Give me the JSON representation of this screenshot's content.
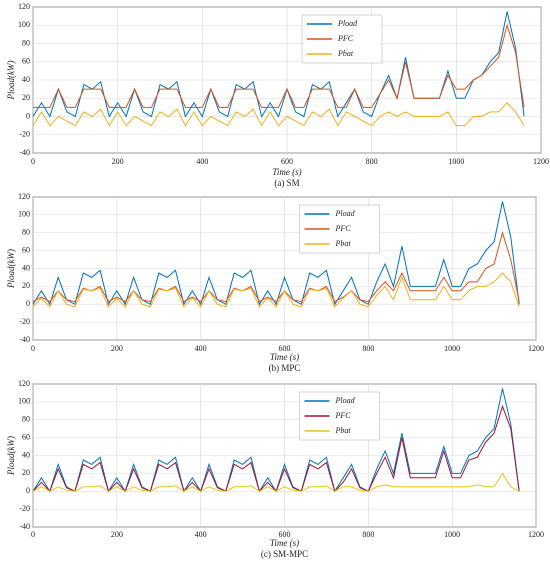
{
  "chart_data": [
    {
      "type": "line",
      "caption": "(a) SM",
      "xlabel": "Time (s)",
      "ylabel": "Pload(kW)",
      "x": [
        0,
        20,
        40,
        60,
        80,
        100,
        120,
        140,
        160,
        180,
        200,
        220,
        240,
        260,
        280,
        300,
        320,
        340,
        360,
        380,
        400,
        420,
        440,
        460,
        480,
        500,
        520,
        540,
        560,
        580,
        600,
        620,
        640,
        660,
        680,
        700,
        720,
        740,
        760,
        780,
        800,
        820,
        840,
        860,
        880,
        900,
        920,
        940,
        960,
        980,
        1000,
        1020,
        1040,
        1060,
        1080,
        1100,
        1120,
        1140,
        1160
      ],
      "series": [
        {
          "name": "Pload",
          "color": "#0072bd",
          "values": [
            0,
            15,
            0,
            30,
            5,
            0,
            35,
            30,
            38,
            0,
            15,
            0,
            30,
            5,
            0,
            35,
            30,
            38,
            0,
            15,
            0,
            30,
            5,
            0,
            35,
            30,
            38,
            0,
            15,
            0,
            30,
            5,
            0,
            35,
            30,
            38,
            0,
            15,
            30,
            5,
            0,
            25,
            45,
            20,
            65,
            20,
            20,
            20,
            20,
            50,
            20,
            20,
            40,
            45,
            60,
            70,
            115,
            75,
            0
          ]
        },
        {
          "name": "PFC",
          "color": "#d95319",
          "values": [
            10,
            10,
            10,
            30,
            10,
            10,
            30,
            30,
            30,
            10,
            10,
            10,
            30,
            10,
            10,
            30,
            30,
            30,
            10,
            10,
            10,
            30,
            10,
            10,
            30,
            30,
            30,
            10,
            10,
            10,
            30,
            10,
            10,
            30,
            30,
            30,
            10,
            10,
            30,
            10,
            10,
            25,
            40,
            20,
            60,
            20,
            20,
            20,
            20,
            45,
            30,
            30,
            40,
            45,
            55,
            65,
            100,
            70,
            10
          ]
        },
        {
          "name": "Pbat",
          "color": "#edb120",
          "values": [
            -10,
            5,
            -10,
            0,
            -5,
            -10,
            5,
            0,
            8,
            -10,
            5,
            -10,
            0,
            -5,
            -10,
            5,
            0,
            8,
            -10,
            5,
            -10,
            0,
            -5,
            -10,
            5,
            0,
            8,
            -10,
            5,
            -10,
            0,
            -5,
            -10,
            5,
            0,
            8,
            -10,
            5,
            0,
            -5,
            -10,
            0,
            5,
            0,
            5,
            0,
            0,
            0,
            0,
            5,
            -10,
            -10,
            0,
            0,
            5,
            5,
            15,
            5,
            -10
          ]
        }
      ],
      "xlim": [
        0,
        1200
      ],
      "xticks": [
        0,
        200,
        400,
        600,
        800,
        1000,
        1200
      ],
      "ylim": [
        -40,
        120
      ],
      "yticks": [
        -40,
        -20,
        0,
        20,
        40,
        60,
        80,
        100,
        120
      ],
      "grid": true,
      "legend": "upper center"
    },
    {
      "type": "line",
      "caption": "(b) MPC",
      "xlabel": "Time (s)",
      "ylabel": "Pload(kW)",
      "x": [
        0,
        20,
        40,
        60,
        80,
        100,
        120,
        140,
        160,
        180,
        200,
        220,
        240,
        260,
        280,
        300,
        320,
        340,
        360,
        380,
        400,
        420,
        440,
        460,
        480,
        500,
        520,
        540,
        560,
        580,
        600,
        620,
        640,
        660,
        680,
        700,
        720,
        740,
        760,
        780,
        800,
        820,
        840,
        860,
        880,
        900,
        920,
        940,
        960,
        980,
        1000,
        1020,
        1040,
        1060,
        1080,
        1100,
        1120,
        1140,
        1160
      ],
      "series": [
        {
          "name": "Pload",
          "color": "#0072bd",
          "values": [
            0,
            15,
            0,
            30,
            5,
            0,
            35,
            30,
            38,
            0,
            15,
            0,
            30,
            5,
            0,
            35,
            30,
            38,
            0,
            15,
            0,
            30,
            5,
            0,
            35,
            30,
            38,
            0,
            15,
            0,
            30,
            5,
            0,
            35,
            30,
            38,
            0,
            15,
            30,
            5,
            0,
            25,
            45,
            20,
            65,
            20,
            20,
            20,
            20,
            50,
            20,
            20,
            40,
            45,
            60,
            70,
            115,
            75,
            0
          ]
        },
        {
          "name": "PFC",
          "color": "#d95319",
          "values": [
            3,
            8,
            3,
            15,
            5,
            3,
            18,
            15,
            20,
            3,
            8,
            3,
            15,
            5,
            3,
            18,
            15,
            20,
            3,
            8,
            3,
            15,
            5,
            3,
            18,
            15,
            20,
            3,
            8,
            3,
            15,
            5,
            3,
            18,
            15,
            20,
            3,
            8,
            15,
            5,
            3,
            15,
            25,
            15,
            35,
            15,
            15,
            15,
            15,
            30,
            15,
            15,
            25,
            25,
            40,
            45,
            80,
            50,
            3
          ]
        },
        {
          "name": "Pbat",
          "color": "#edb120",
          "values": [
            -3,
            7,
            -3,
            15,
            0,
            -3,
            17,
            15,
            18,
            -3,
            7,
            -3,
            15,
            0,
            -3,
            17,
            15,
            18,
            -3,
            7,
            -3,
            15,
            0,
            -3,
            17,
            15,
            18,
            -3,
            7,
            -3,
            15,
            0,
            -3,
            17,
            15,
            18,
            -3,
            7,
            15,
            0,
            -3,
            10,
            20,
            5,
            30,
            5,
            5,
            5,
            5,
            20,
            5,
            5,
            15,
            20,
            20,
            25,
            35,
            25,
            -3
          ]
        }
      ],
      "xlim": [
        0,
        1200
      ],
      "xticks": [
        0,
        200,
        400,
        600,
        800,
        1000,
        1200
      ],
      "ylim": [
        -40,
        120
      ],
      "yticks": [
        -40,
        -20,
        0,
        20,
        40,
        60,
        80,
        100,
        120
      ],
      "grid": true,
      "legend": "upper center"
    },
    {
      "type": "line",
      "caption": "(c) SM-MPC",
      "xlabel": "Time (s)",
      "ylabel": "Pload(kW)",
      "x": [
        0,
        20,
        40,
        60,
        80,
        100,
        120,
        140,
        160,
        180,
        200,
        220,
        240,
        260,
        280,
        300,
        320,
        340,
        360,
        380,
        400,
        420,
        440,
        460,
        480,
        500,
        520,
        540,
        560,
        580,
        600,
        620,
        640,
        660,
        680,
        700,
        720,
        740,
        760,
        780,
        800,
        820,
        840,
        860,
        880,
        900,
        920,
        940,
        960,
        980,
        1000,
        1020,
        1040,
        1060,
        1080,
        1100,
        1120,
        1140,
        1160
      ],
      "series": [
        {
          "name": "Pload",
          "color": "#0072bd",
          "values": [
            0,
            15,
            0,
            30,
            5,
            0,
            35,
            30,
            38,
            0,
            15,
            0,
            30,
            5,
            0,
            35,
            30,
            38,
            0,
            15,
            0,
            30,
            5,
            0,
            35,
            30,
            38,
            0,
            15,
            0,
            30,
            5,
            0,
            35,
            30,
            38,
            0,
            15,
            30,
            5,
            0,
            25,
            45,
            20,
            65,
            20,
            20,
            20,
            20,
            50,
            20,
            20,
            40,
            45,
            60,
            70,
            115,
            75,
            0
          ]
        },
        {
          "name": "PFC",
          "color": "#a2142f",
          "values": [
            0,
            10,
            0,
            25,
            4,
            0,
            30,
            25,
            32,
            0,
            10,
            0,
            25,
            4,
            0,
            30,
            25,
            32,
            0,
            10,
            0,
            25,
            4,
            0,
            30,
            25,
            32,
            0,
            10,
            0,
            25,
            4,
            0,
            30,
            25,
            32,
            0,
            10,
            25,
            4,
            0,
            20,
            38,
            15,
            60,
            15,
            15,
            15,
            15,
            45,
            15,
            15,
            35,
            38,
            55,
            65,
            95,
            70,
            0
          ]
        },
        {
          "name": "Pbat",
          "color": "#e6c619",
          "values": [
            0,
            5,
            0,
            5,
            1,
            0,
            5,
            5,
            6,
            0,
            5,
            0,
            5,
            1,
            0,
            5,
            5,
            6,
            0,
            5,
            0,
            5,
            1,
            0,
            5,
            5,
            6,
            0,
            5,
            0,
            5,
            1,
            0,
            5,
            5,
            6,
            0,
            5,
            5,
            1,
            0,
            5,
            7,
            5,
            5,
            5,
            5,
            5,
            5,
            5,
            5,
            5,
            5,
            7,
            5,
            5,
            20,
            5,
            0
          ]
        }
      ],
      "xlim": [
        0,
        1200
      ],
      "xticks": [
        0,
        200,
        400,
        600,
        800,
        1000,
        1200
      ],
      "ylim": [
        -40,
        120
      ],
      "yticks": [
        -40,
        -20,
        0,
        20,
        40,
        60,
        80,
        100,
        120
      ],
      "grid": true,
      "legend": "upper center"
    }
  ]
}
